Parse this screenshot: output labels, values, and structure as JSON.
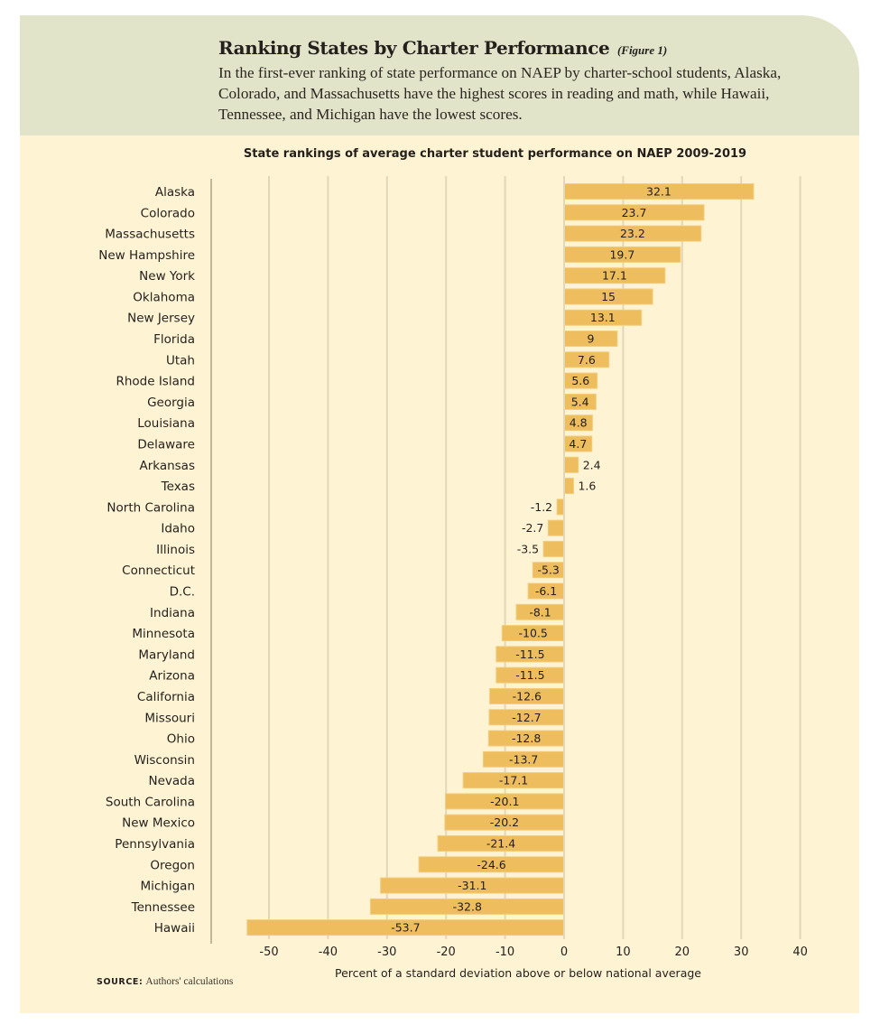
{
  "header": {
    "title": "Ranking States by Charter Performance",
    "figure_label": "(Figure 1)",
    "intro": "In the first-ever ranking of state performance on NAEP by charter-school students, Alaska, Colorado, and Massachusetts have the highest scores in reading and math, while Hawaii, Tennessee, and Michigan have the lowest scores."
  },
  "source": {
    "label": "SOURCE:",
    "text": "Authors' calculations"
  },
  "colors": {
    "header_bg": "#e1e4c9",
    "panel_bg": "#fef4d4",
    "bar": "#edbd5e",
    "bar_outline": "#f4cc7c",
    "gridline": "#e2d7b6",
    "axis": "#c4b796",
    "text": "#231f1c"
  },
  "chart_data": {
    "type": "bar",
    "orientation": "horizontal",
    "title": "State rankings of average charter student performance on NAEP 2009-2019",
    "xlabel": "Percent of a standard deviation above or below national average",
    "ylabel": "",
    "xlim": [
      -60,
      45
    ],
    "xticks": [
      -50,
      -40,
      -30,
      -20,
      -10,
      0,
      10,
      20,
      30,
      40
    ],
    "xtick_labels": [
      "-50",
      "-40",
      "-30",
      "-20",
      "-10",
      "0",
      "10",
      "20",
      "30",
      "40"
    ],
    "grid": "vertical",
    "legend": "none",
    "categories": [
      "Alaska",
      "Colorado",
      "Massachusetts",
      "New Hampshire",
      "New York",
      "Oklahoma",
      "New Jersey",
      "Florida",
      "Utah",
      "Rhode Island",
      "Georgia",
      "Louisiana",
      "Delaware",
      "Arkansas",
      "Texas",
      "North Carolina",
      "Idaho",
      "Illinois",
      "Connecticut",
      "D.C.",
      "Indiana",
      "Minnesota",
      "Maryland",
      "Arizona",
      "California",
      "Missouri",
      "Ohio",
      "Wisconsin",
      "Nevada",
      "South Carolina",
      "New Mexico",
      "Pennsylvania",
      "Oregon",
      "Michigan",
      "Tennessee",
      "Hawaii"
    ],
    "values": [
      32.1,
      23.7,
      23.2,
      19.7,
      17.1,
      15,
      13.1,
      9,
      7.6,
      5.6,
      5.4,
      4.8,
      4.7,
      2.4,
      1.6,
      -1.2,
      -2.7,
      -3.5,
      -5.3,
      -6.1,
      -8.1,
      -10.5,
      -11.5,
      -11.5,
      -12.6,
      -12.7,
      -12.8,
      -13.7,
      -17.1,
      -20.1,
      -20.2,
      -21.4,
      -24.6,
      -31.1,
      -32.8,
      -53.7
    ],
    "value_labels": [
      "32.1",
      "23.7",
      "23.2",
      "19.7",
      "17.1",
      "15",
      "13.1",
      "9",
      "7.6",
      "5.6",
      "5.4",
      "4.8",
      "4.7",
      "2.4",
      "1.6",
      "-1.2",
      "-2.7",
      "-3.5",
      "-5.3",
      "-6.1",
      "-8.1",
      "-10.5",
      "-11.5",
      "-11.5",
      "-12.6",
      "-12.7",
      "-12.8",
      "-13.7",
      "-17.1",
      "-20.1",
      "-20.2",
      "-21.4",
      "-24.6",
      "-31.1",
      "-32.8",
      "-53.7"
    ]
  }
}
